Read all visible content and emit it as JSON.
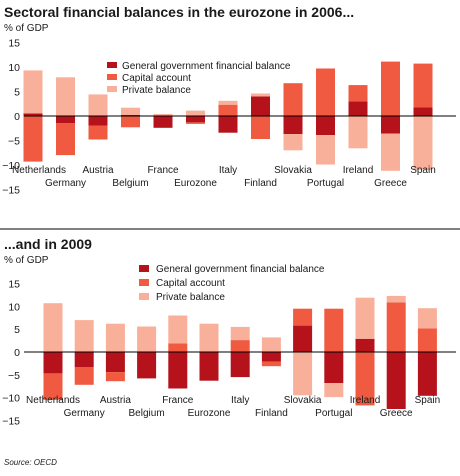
{
  "colors": {
    "government": "#b5121b",
    "capital": "#ef5a40",
    "private": "#f9b09a",
    "rule": "#000000",
    "grid": "#cfcfcf"
  },
  "source": "Source: OECD",
  "chart_data": [
    {
      "type": "bar",
      "stacking": "diverging",
      "title": "Sectoral financial balances in the eurozone in 2006...",
      "ylabel": "% of GDP",
      "ylim": [
        -15,
        15
      ],
      "yticks": [
        15,
        10,
        5,
        0,
        -5,
        -10,
        -15
      ],
      "legend_position": "top-center",
      "categories": [
        "Netherlands",
        "Germany",
        "Austria",
        "Belgium",
        "France",
        "Eurozone",
        "Italy",
        "Finland",
        "Slovakia",
        "Portugal",
        "Ireland",
        "Greece",
        "Spain"
      ],
      "series": [
        {
          "name": "General government financial balance",
          "key": "government",
          "values": [
            0.5,
            -1.5,
            -2.0,
            0.2,
            -2.4,
            -1.3,
            -3.4,
            4.0,
            -3.7,
            -3.9,
            3.0,
            -3.6,
            1.8
          ]
        },
        {
          "name": "Capital account",
          "key": "capital",
          "values": [
            -9.3,
            -6.5,
            -2.8,
            -2.3,
            0.0,
            -0.3,
            2.3,
            -4.7,
            6.7,
            9.7,
            3.3,
            11.1,
            8.9
          ]
        },
        {
          "name": "Private balance",
          "key": "private",
          "values": [
            8.8,
            7.9,
            4.4,
            1.5,
            0.4,
            1.1,
            0.8,
            0.6,
            -3.3,
            -6.0,
            -6.6,
            -7.6,
            -11.0
          ]
        }
      ]
    },
    {
      "type": "bar",
      "stacking": "diverging",
      "title": "...and in 2009",
      "ylabel": "% of GDP",
      "ylim": [
        -15,
        15
      ],
      "yticks": [
        15,
        10,
        5,
        0,
        -5,
        -10,
        -15
      ],
      "legend_position": "top-center",
      "categories": [
        "Netherlands",
        "Germany",
        "Austria",
        "Belgium",
        "France",
        "Eurozone",
        "Italy",
        "Finland",
        "Slovakia",
        "Portugal",
        "Ireland",
        "Greece",
        "Spain"
      ],
      "series": [
        {
          "name": "General government financial balance",
          "key": "government",
          "values": [
            -4.7,
            -3.3,
            -4.4,
            -5.8,
            -8.0,
            -6.3,
            -5.5,
            -2.1,
            5.8,
            -6.8,
            2.9,
            -12.5,
            -9.6
          ]
        },
        {
          "name": "Capital account",
          "key": "capital",
          "values": [
            -5.8,
            -3.9,
            -2.0,
            0.0,
            1.9,
            0.0,
            2.6,
            -1.0,
            3.7,
            9.5,
            -11.7,
            10.9,
            5.2
          ]
        },
        {
          "name": "Private balance",
          "key": "private",
          "values": [
            10.7,
            7.0,
            6.2,
            5.6,
            6.1,
            6.2,
            2.9,
            3.2,
            -9.5,
            -3.1,
            9.0,
            1.4,
            4.4
          ]
        }
      ]
    }
  ]
}
